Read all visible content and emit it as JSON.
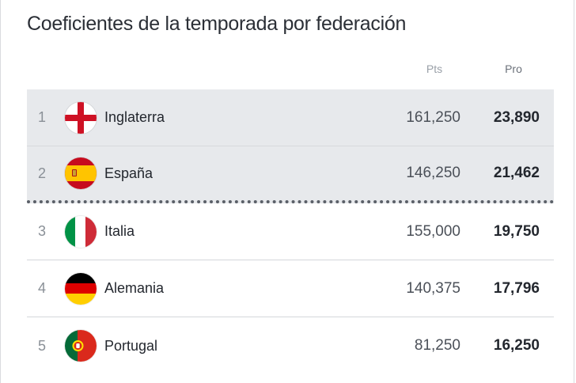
{
  "title": "Coeficientes de la temporada por federación",
  "columns": {
    "pts": "Pts",
    "pro": "Pro"
  },
  "rows": [
    {
      "rank": "1",
      "name": "Inglaterra",
      "pts": "161,250",
      "pro": "23,890",
      "flag_icon": "england-flag-icon"
    },
    {
      "rank": "2",
      "name": "España",
      "pts": "146,250",
      "pro": "21,462",
      "flag_icon": "spain-flag-icon"
    },
    {
      "rank": "3",
      "name": "Italia",
      "pts": "155,000",
      "pro": "19,750",
      "flag_icon": "italy-flag-icon"
    },
    {
      "rank": "4",
      "name": "Alemania",
      "pts": "140,375",
      "pro": "17,796",
      "flag_icon": "germany-flag-icon"
    },
    {
      "rank": "5",
      "name": "Portugal",
      "pts": "81,250",
      "pro": "16,250",
      "flag_icon": "portugal-flag-icon"
    }
  ],
  "colors": {
    "highlight_bg": "#e7e9ec",
    "text_primary": "#23272e",
    "text_muted": "#8a9097",
    "dotted_separator": "#5b6068"
  }
}
